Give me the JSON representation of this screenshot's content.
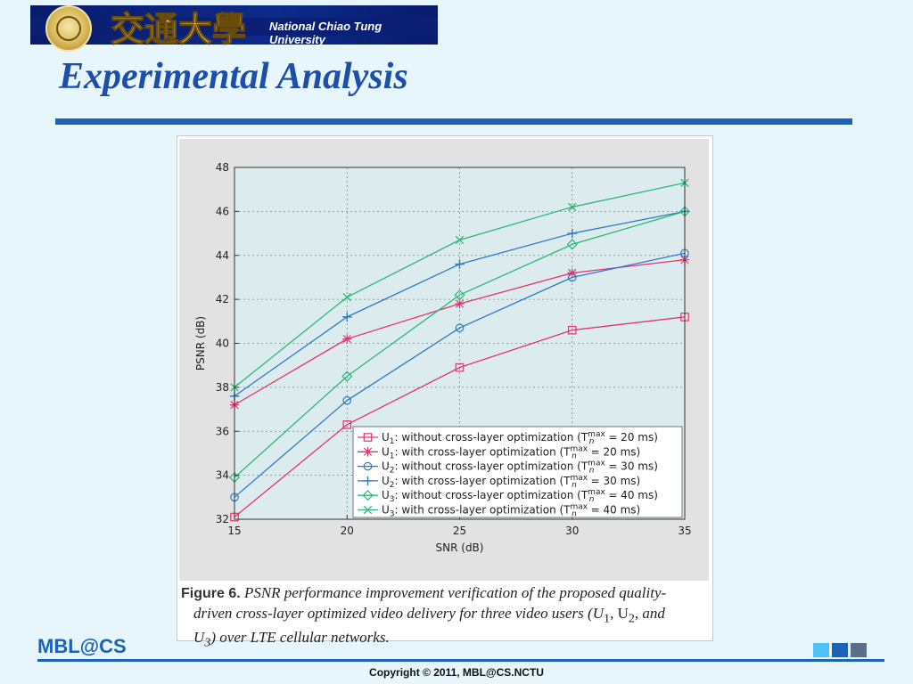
{
  "header": {
    "university_name": "National Chiao Tung University",
    "calligraphy": "交通大學",
    "title": "Experimental Analysis"
  },
  "figure": {
    "caption_label": "Figure 6.",
    "caption_text_1": "PSNR performance improvement verification of the proposed quality-",
    "caption_text_2": "driven cross-layer optimized video delivery for three video users (U",
    "caption_text_3": ") over LTE cellular networks."
  },
  "footer": {
    "logo_text": "MBL@CS",
    "copyright": "Copyright © 2011, MBL@CS.NCTU"
  },
  "colors": {
    "title": "#1d4fa8",
    "rule": "#1a63b8",
    "u1": "#e6336e",
    "u2": "#2d79c7",
    "u3": "#2cb873",
    "plot_bg": "#dcecee"
  },
  "chart_data": {
    "type": "line",
    "title": "",
    "xlabel": "SNR (dB)",
    "ylabel": "PSNR (dB)",
    "xlim": [
      15,
      35
    ],
    "ylim": [
      32,
      48
    ],
    "xticks": [
      15,
      20,
      25,
      30,
      35
    ],
    "yticks": [
      32,
      34,
      36,
      38,
      40,
      42,
      44,
      46,
      48
    ],
    "grid": true,
    "legend_position": "bottom-right",
    "x": [
      15,
      20,
      25,
      30,
      35
    ],
    "series": [
      {
        "name": "U1: without cross-layer optimization (Tn max = 20 ms)",
        "user": "U",
        "sub": "1",
        "text": ": without cross-layer optimization (T",
        "value": " = 20 ms)",
        "marker": "square",
        "color": "#e6336e",
        "values": [
          32.1,
          36.3,
          38.9,
          40.6,
          41.2
        ]
      },
      {
        "name": "U1: with cross-layer optimization (Tn max = 20 ms)",
        "user": "U",
        "sub": "1",
        "text": ": with cross-layer optimization (T",
        "value": " = 20 ms)",
        "marker": "asterisk",
        "color": "#e6336e",
        "values": [
          37.2,
          40.2,
          41.8,
          43.2,
          43.8
        ]
      },
      {
        "name": "U2: without cross-layer optimization (Tn max = 30 ms)",
        "user": "U",
        "sub": "2",
        "text": ": without cross-layer optimization (T",
        "value": " = 30 ms)",
        "marker": "circle",
        "color": "#2d79c7",
        "values": [
          33.0,
          37.4,
          40.7,
          43.0,
          44.1
        ]
      },
      {
        "name": "U2: with cross-layer optimization (Tn max = 30 ms)",
        "user": "U",
        "sub": "2",
        "text": ": with cross-layer optimization (T",
        "value": " = 30 ms)",
        "marker": "plus",
        "color": "#2d79c7",
        "values": [
          37.6,
          41.2,
          43.6,
          45.0,
          46.0
        ]
      },
      {
        "name": "U3: without cross-layer optimization (Tn max = 40 ms)",
        "user": "U",
        "sub": "3",
        "text": ": without cross-layer optimization (T",
        "value": " = 40 ms)",
        "marker": "diamond",
        "color": "#2cb873",
        "values": [
          33.9,
          38.5,
          42.2,
          44.5,
          46.0
        ]
      },
      {
        "name": "U3: with cross-layer optimization (Tn max = 40 ms)",
        "user": "U",
        "sub": "3",
        "text": ": with cross-layer optimization (T",
        "value": " = 40 ms)",
        "marker": "x",
        "color": "#2cb873",
        "values": [
          38.0,
          42.1,
          44.7,
          46.2,
          47.3
        ]
      }
    ],
    "legend_sub_n": "n",
    "legend_sup_max": "max"
  }
}
